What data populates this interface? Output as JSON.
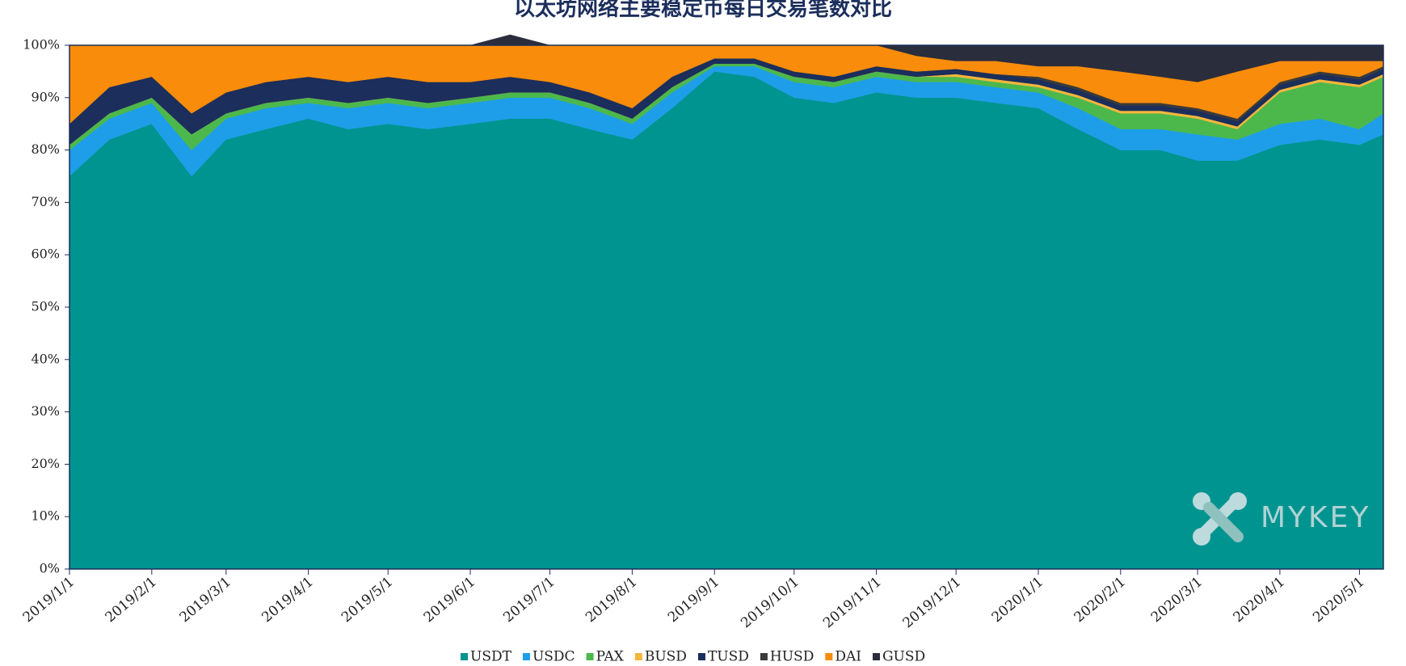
{
  "chart_data": {
    "type": "stacked_area",
    "title": "以太坊网络主要稳定币每日交易笔数对比",
    "watermark": "MYKEY",
    "x": [
      "2019/1/1",
      "2019/1/16",
      "2019/2/1",
      "2019/2/16",
      "2019/3/1",
      "2019/3/16",
      "2019/4/1",
      "2019/4/16",
      "2019/5/1",
      "2019/5/16",
      "2019/6/1",
      "2019/6/16",
      "2019/7/1",
      "2019/7/16",
      "2019/8/1",
      "2019/8/16",
      "2019/9/1",
      "2019/9/16",
      "2019/10/1",
      "2019/10/16",
      "2019/11/1",
      "2019/11/16",
      "2019/12/1",
      "2019/12/16",
      "2020/1/1",
      "2020/1/16",
      "2020/2/1",
      "2020/2/16",
      "2020/3/1",
      "2020/3/16",
      "2020/4/1",
      "2020/4/16",
      "2020/5/1",
      "2020/5/10"
    ],
    "xlim": [
      "2019/1/1",
      "2020/5/10"
    ],
    "xticks": [
      "2019/1/1",
      "2019/2/1",
      "2019/3/1",
      "2019/4/1",
      "2019/5/1",
      "2019/6/1",
      "2019/7/1",
      "2019/8/1",
      "2019/9/1",
      "2019/10/1",
      "2019/11/1",
      "2019/12/1",
      "2020/1/1",
      "2020/2/1",
      "2020/3/1",
      "2020/4/1",
      "2020/5/1"
    ],
    "ylim": [
      0,
      100
    ],
    "yticks": [
      {
        "value": 0,
        "label": "0%"
      },
      {
        "value": 10,
        "label": "10%"
      },
      {
        "value": 20,
        "label": "20%"
      },
      {
        "value": 30,
        "label": "30%"
      },
      {
        "value": 40,
        "label": "40%"
      },
      {
        "value": 50,
        "label": "50%"
      },
      {
        "value": 60,
        "label": "60%"
      },
      {
        "value": 70,
        "label": "70%"
      },
      {
        "value": 80,
        "label": "80%"
      },
      {
        "value": 90,
        "label": "90%"
      },
      {
        "value": 100,
        "label": "100%"
      }
    ],
    "series": [
      {
        "name": "USDT",
        "color": "#009490",
        "values": [
          75,
          82,
          85,
          75,
          82,
          84,
          86,
          84,
          85,
          84,
          85,
          86,
          86,
          84,
          82,
          88,
          95,
          94,
          90,
          89,
          91,
          90,
          90,
          89,
          88,
          84,
          80,
          80,
          78,
          78,
          81,
          82,
          81,
          83
        ]
      },
      {
        "name": "USDC",
        "color": "#1e9ee8",
        "values": [
          5,
          4,
          4,
          5,
          4,
          4,
          3,
          4,
          4,
          4,
          4,
          4,
          4,
          4,
          3,
          3,
          1,
          2,
          3,
          3,
          3,
          3,
          3,
          3,
          3,
          4,
          4,
          4,
          5,
          4,
          4,
          4,
          3,
          4
        ]
      },
      {
        "name": "PAX",
        "color": "#4cb84c",
        "values": [
          1,
          1,
          1,
          3,
          1,
          1,
          1,
          1,
          1,
          1,
          1,
          1,
          1,
          1,
          1,
          1,
          0.5,
          0.5,
          1,
          1,
          1,
          1,
          1,
          1,
          1,
          2,
          3,
          3,
          3,
          2,
          6,
          7,
          8,
          7
        ]
      },
      {
        "name": "BUSD",
        "color": "#f5b63c",
        "values": [
          0,
          0,
          0,
          0,
          0,
          0,
          0,
          0,
          0,
          0,
          0,
          0,
          0,
          0,
          0,
          0,
          0,
          0,
          0,
          0,
          0,
          0,
          0.5,
          0.5,
          0.5,
          0.5,
          0.5,
          0.5,
          0.5,
          0.5,
          0.5,
          0.5,
          0.5,
          0.5
        ]
      },
      {
        "name": "TUSD",
        "color": "#1b2e5c",
        "values": [
          4,
          5,
          4,
          4,
          4,
          4,
          4,
          4,
          4,
          4,
          3,
          3,
          2,
          2,
          2,
          2,
          1,
          1,
          1,
          1,
          1,
          1,
          1,
          1,
          1,
          1,
          1,
          1,
          1,
          1,
          1,
          1,
          1,
          1
        ]
      },
      {
        "name": "HUSD",
        "color": "#3a3a3a",
        "values": [
          0,
          0,
          0,
          0,
          0,
          0,
          0,
          0,
          0,
          0,
          0,
          0,
          0,
          0,
          0,
          0,
          0,
          0,
          0,
          0,
          0,
          0,
          0,
          0,
          0.5,
          0.5,
          0.5,
          0.5,
          0.5,
          0.5,
          0.5,
          0.5,
          0.5,
          0.5
        ]
      },
      {
        "name": "DAI",
        "color": "#f98c0a",
        "values": [
          15,
          8,
          6,
          13,
          9,
          7,
          6,
          7,
          6,
          7,
          7,
          6,
          7,
          9,
          12,
          6,
          2.5,
          2.5,
          5,
          6,
          4,
          3,
          1.5,
          2.5,
          2,
          4,
          6,
          5,
          5,
          9,
          4,
          2,
          3,
          1
        ]
      },
      {
        "name": "GUSD",
        "color": "#2a2d3c",
        "values": [
          0,
          0,
          0,
          0,
          0,
          0,
          0,
          0,
          0,
          0,
          0,
          2,
          0,
          0,
          0,
          0,
          0,
          0,
          0,
          0,
          0,
          2,
          3,
          3,
          4,
          4,
          5,
          6,
          7,
          5,
          3,
          3,
          3,
          3
        ]
      }
    ]
  }
}
